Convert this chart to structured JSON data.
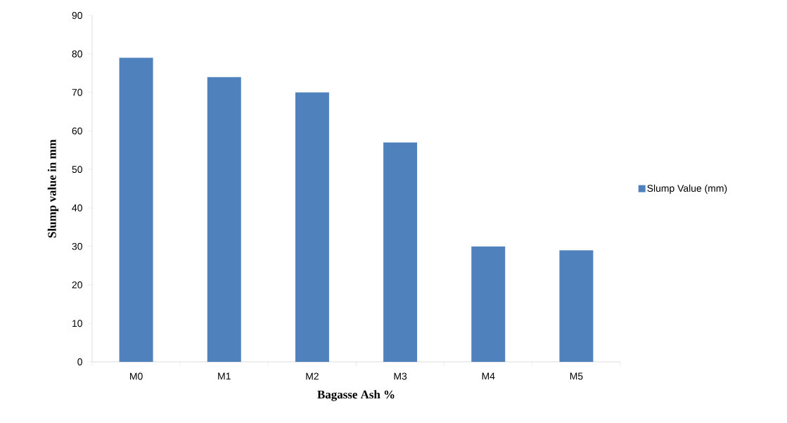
{
  "chart_data": {
    "type": "bar",
    "xlabel": "Bagasse Ash %",
    "ylabel": "Slump value in mm",
    "categories": [
      "M0",
      "M1",
      "M2",
      "M3",
      "M4",
      "M5"
    ],
    "series": [
      {
        "name": "Slump Value (mm)",
        "color": "#4f81bd",
        "values": [
          79,
          74,
          70,
          57,
          30,
          29
        ]
      }
    ],
    "ylim": [
      0,
      90
    ],
    "yticks": [
      0,
      10,
      20,
      30,
      40,
      50,
      60,
      70,
      80,
      90
    ],
    "legend": "right"
  }
}
